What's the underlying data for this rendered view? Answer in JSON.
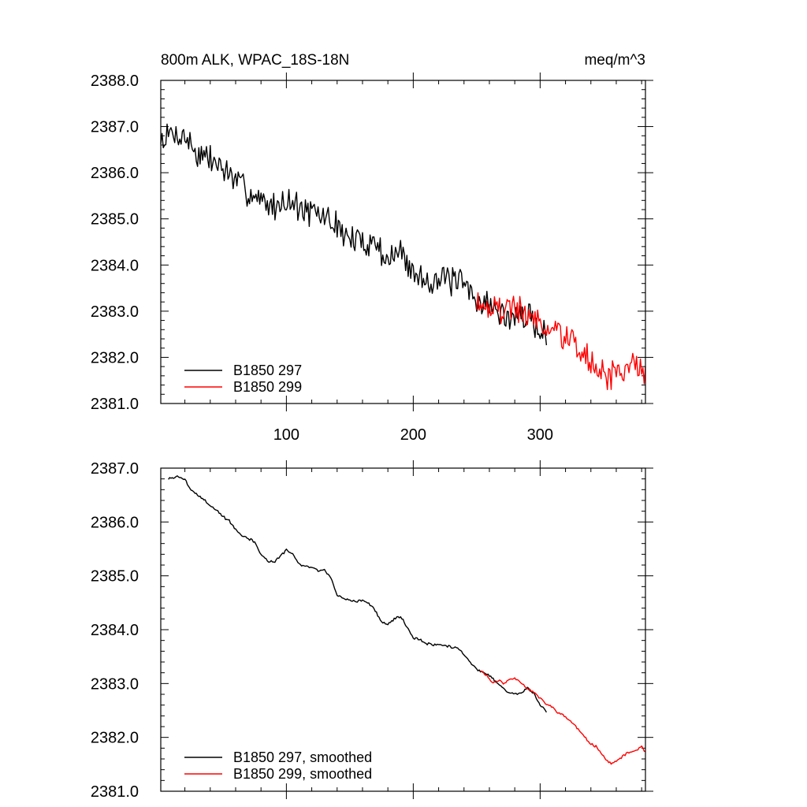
{
  "chart_data": [
    {
      "type": "line",
      "title_left": "800m ALK, WPAC_18S-18N",
      "title_right": "meq/m^3",
      "xlim": [
        1,
        383
      ],
      "ylim": [
        2381.0,
        2388.0
      ],
      "x_ticks": [
        100,
        200,
        300
      ],
      "x_tick_labels": [
        "100",
        "200",
        "300"
      ],
      "y_ticks": [
        2381,
        2382,
        2383,
        2384,
        2385,
        2386,
        2387,
        2388
      ],
      "y_tick_labels": [
        "2381.0",
        "2382.0",
        "2383.0",
        "2384.0",
        "2385.0",
        "2386.0",
        "2387.0",
        "2388.0"
      ],
      "legend": "bottom-left",
      "series": [
        {
          "name": "B1850 297",
          "color": "#000000",
          "x_start": 1,
          "x_end": 305,
          "anchors": [
            [
              1,
              2386.7
            ],
            [
              10,
              2386.85
            ],
            [
              20,
              2386.8
            ],
            [
              30,
              2386.4
            ],
            [
              40,
              2386.3
            ],
            [
              50,
              2386.1
            ],
            [
              60,
              2385.8
            ],
            [
              70,
              2385.6
            ],
            [
              80,
              2385.4
            ],
            [
              90,
              2385.25
            ],
            [
              100,
              2385.45
            ],
            [
              110,
              2385.25
            ],
            [
              120,
              2385.1
            ],
            [
              130,
              2385.05
            ],
            [
              140,
              2384.85
            ],
            [
              150,
              2384.55
            ],
            [
              160,
              2384.5
            ],
            [
              170,
              2384.5
            ],
            [
              180,
              2384.1
            ],
            [
              190,
              2384.3
            ],
            [
              200,
              2383.8
            ],
            [
              210,
              2383.7
            ],
            [
              220,
              2383.7
            ],
            [
              230,
              2383.65
            ],
            [
              240,
              2383.55
            ],
            [
              250,
              2383.25
            ],
            [
              260,
              2383.15
            ],
            [
              270,
              2382.9
            ],
            [
              280,
              2382.85
            ],
            [
              290,
              2382.9
            ],
            [
              300,
              2382.6
            ],
            [
              305,
              2382.5
            ]
          ],
          "noise": 0.28,
          "seed": 7
        },
        {
          "name": "B1850 299",
          "color": "#ff0000",
          "x_start": 250,
          "x_end": 383,
          "anchors": [
            [
              250,
              2383.25
            ],
            [
              260,
              2383.1
            ],
            [
              270,
              2383.0
            ],
            [
              280,
              2383.1
            ],
            [
              290,
              2382.9
            ],
            [
              300,
              2382.75
            ],
            [
              310,
              2382.6
            ],
            [
              320,
              2382.4
            ],
            [
              330,
              2382.2
            ],
            [
              340,
              2381.9
            ],
            [
              350,
              2381.6
            ],
            [
              355,
              2381.55
            ],
            [
              360,
              2381.7
            ],
            [
              370,
              2381.75
            ],
            [
              380,
              2381.85
            ],
            [
              383,
              2381.7
            ]
          ],
          "noise": 0.28,
          "seed": 19
        }
      ]
    },
    {
      "type": "line",
      "xlim": [
        1,
        383
      ],
      "ylim": [
        2381.0,
        2387.0
      ],
      "x_ticks": [
        100,
        200,
        300
      ],
      "y_ticks": [
        2381,
        2382,
        2383,
        2384,
        2385,
        2386,
        2387
      ],
      "y_tick_labels": [
        "2381.0",
        "2382.0",
        "2383.0",
        "2384.0",
        "2385.0",
        "2386.0",
        "2387.0"
      ],
      "legend": "bottom-left",
      "series": [
        {
          "name": "B1850 297, smoothed",
          "color": "#000000",
          "x_start": 7,
          "x_end": 305,
          "anchors": [
            [
              7,
              2386.8
            ],
            [
              15,
              2386.85
            ],
            [
              20,
              2386.78
            ],
            [
              25,
              2386.6
            ],
            [
              30,
              2386.5
            ],
            [
              35,
              2386.42
            ],
            [
              40,
              2386.3
            ],
            [
              45,
              2386.22
            ],
            [
              50,
              2386.1
            ],
            [
              55,
              2386.02
            ],
            [
              60,
              2385.85
            ],
            [
              65,
              2385.75
            ],
            [
              70,
              2385.7
            ],
            [
              75,
              2385.62
            ],
            [
              80,
              2385.4
            ],
            [
              85,
              2385.28
            ],
            [
              90,
              2385.25
            ],
            [
              95,
              2385.35
            ],
            [
              100,
              2385.48
            ],
            [
              105,
              2385.4
            ],
            [
              110,
              2385.22
            ],
            [
              115,
              2385.18
            ],
            [
              120,
              2385.15
            ],
            [
              125,
              2385.1
            ],
            [
              130,
              2385.12
            ],
            [
              135,
              2384.95
            ],
            [
              140,
              2384.65
            ],
            [
              145,
              2384.58
            ],
            [
              150,
              2384.55
            ],
            [
              155,
              2384.52
            ],
            [
              160,
              2384.55
            ],
            [
              165,
              2384.5
            ],
            [
              170,
              2384.35
            ],
            [
              175,
              2384.15
            ],
            [
              180,
              2384.1
            ],
            [
              185,
              2384.2
            ],
            [
              190,
              2384.25
            ],
            [
              195,
              2384.05
            ],
            [
              200,
              2383.85
            ],
            [
              205,
              2383.82
            ],
            [
              210,
              2383.75
            ],
            [
              215,
              2383.72
            ],
            [
              220,
              2383.72
            ],
            [
              225,
              2383.7
            ],
            [
              230,
              2383.68
            ],
            [
              235,
              2383.66
            ],
            [
              240,
              2383.55
            ],
            [
              245,
              2383.4
            ],
            [
              250,
              2383.25
            ],
            [
              255,
              2383.2
            ],
            [
              260,
              2383.15
            ],
            [
              265,
              2383.05
            ],
            [
              270,
              2382.92
            ],
            [
              275,
              2382.85
            ],
            [
              280,
              2382.8
            ],
            [
              285,
              2382.82
            ],
            [
              290,
              2382.92
            ],
            [
              295,
              2382.82
            ],
            [
              300,
              2382.6
            ],
            [
              305,
              2382.48
            ]
          ],
          "noise": 0.02,
          "seed": 3
        },
        {
          "name": "B1850 299, smoothed",
          "color": "#ff0000",
          "x_start": 253,
          "x_end": 383,
          "anchors": [
            [
              253,
              2383.25
            ],
            [
              258,
              2383.15
            ],
            [
              262,
              2383.02
            ],
            [
              268,
              2383.05
            ],
            [
              272,
              2383.0
            ],
            [
              276,
              2383.08
            ],
            [
              280,
              2383.1
            ],
            [
              284,
              2383.05
            ],
            [
              288,
              2382.95
            ],
            [
              292,
              2382.88
            ],
            [
              296,
              2382.82
            ],
            [
              300,
              2382.72
            ],
            [
              305,
              2382.62
            ],
            [
              310,
              2382.55
            ],
            [
              315,
              2382.45
            ],
            [
              320,
              2382.38
            ],
            [
              325,
              2382.28
            ],
            [
              330,
              2382.15
            ],
            [
              335,
              2382.0
            ],
            [
              340,
              2381.88
            ],
            [
              345,
              2381.82
            ],
            [
              350,
              2381.65
            ],
            [
              353,
              2381.55
            ],
            [
              357,
              2381.52
            ],
            [
              360,
              2381.55
            ],
            [
              365,
              2381.65
            ],
            [
              370,
              2381.72
            ],
            [
              375,
              2381.75
            ],
            [
              378,
              2381.8
            ],
            [
              380,
              2381.82
            ],
            [
              383,
              2381.72
            ]
          ],
          "noise": 0.02,
          "seed": 11
        }
      ]
    }
  ]
}
